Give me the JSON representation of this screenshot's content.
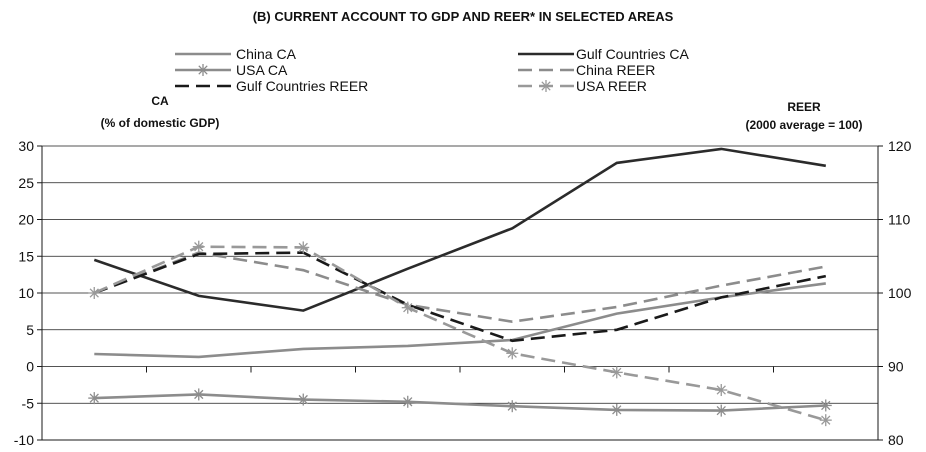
{
  "chart_data": {
    "type": "line",
    "title": "(B) CURRENT ACCOUNT TO GDP AND REER* IN SELECTED AREAS",
    "left_axis": {
      "title_line1": "CA",
      "title_line2": "(% of domestic GDP)",
      "ylim": [
        -10,
        30
      ],
      "ticks": [
        "-10",
        "-5",
        "0",
        "5",
        "10",
        "15",
        "20",
        "25",
        "30"
      ]
    },
    "right_axis": {
      "title_line1": "REER",
      "title_line2": "(2000 average = 100)",
      "ylim": [
        80,
        120
      ],
      "ticks": [
        "80",
        "90",
        "100",
        "110",
        "120"
      ]
    },
    "x_count": 8,
    "grid": true,
    "legend_position": "top",
    "series": [
      {
        "name": "China CA",
        "axis": "left",
        "color": "#8c8c8c",
        "dash": "solid",
        "marker": "none",
        "values": [
          1.7,
          1.3,
          2.4,
          2.8,
          3.6,
          7.2,
          9.4,
          11.3
        ]
      },
      {
        "name": "Gulf Countries CA",
        "axis": "left",
        "color": "#2b2b2b",
        "dash": "solid",
        "marker": "none",
        "values": [
          14.5,
          9.6,
          7.6,
          13.3,
          18.8,
          27.7,
          29.6,
          27.3
        ]
      },
      {
        "name": "USA CA",
        "axis": "left",
        "color": "#8c8c8c",
        "dash": "solid",
        "marker": "star",
        "values": [
          -4.3,
          -3.8,
          -4.5,
          -4.8,
          -5.4,
          -5.9,
          -6.0,
          -5.3
        ]
      },
      {
        "name": "China REER",
        "axis": "right",
        "color": "#8c8c8c",
        "dash": "dashed",
        "marker": "none",
        "values": [
          100.0,
          105.5,
          103.1,
          98.4,
          96.1,
          98.1,
          101.0,
          103.6
        ]
      },
      {
        "name": "Gulf Countries REER",
        "axis": "right",
        "color": "#1a1a1a",
        "dash": "dashed",
        "marker": "none",
        "values": [
          100.0,
          105.3,
          105.5,
          98.4,
          93.5,
          95.0,
          99.4,
          102.3
        ]
      },
      {
        "name": "USA REER",
        "axis": "right",
        "color": "#999999",
        "dash": "dashed",
        "marker": "star",
        "values": [
          100.0,
          106.3,
          106.2,
          98.0,
          91.8,
          89.2,
          86.8,
          82.7
        ]
      }
    ],
    "legend_columns": [
      [
        "China CA",
        "USA CA",
        "Gulf Countries REER"
      ],
      [
        "Gulf Countries CA",
        "China REER",
        "USA REER"
      ]
    ]
  }
}
